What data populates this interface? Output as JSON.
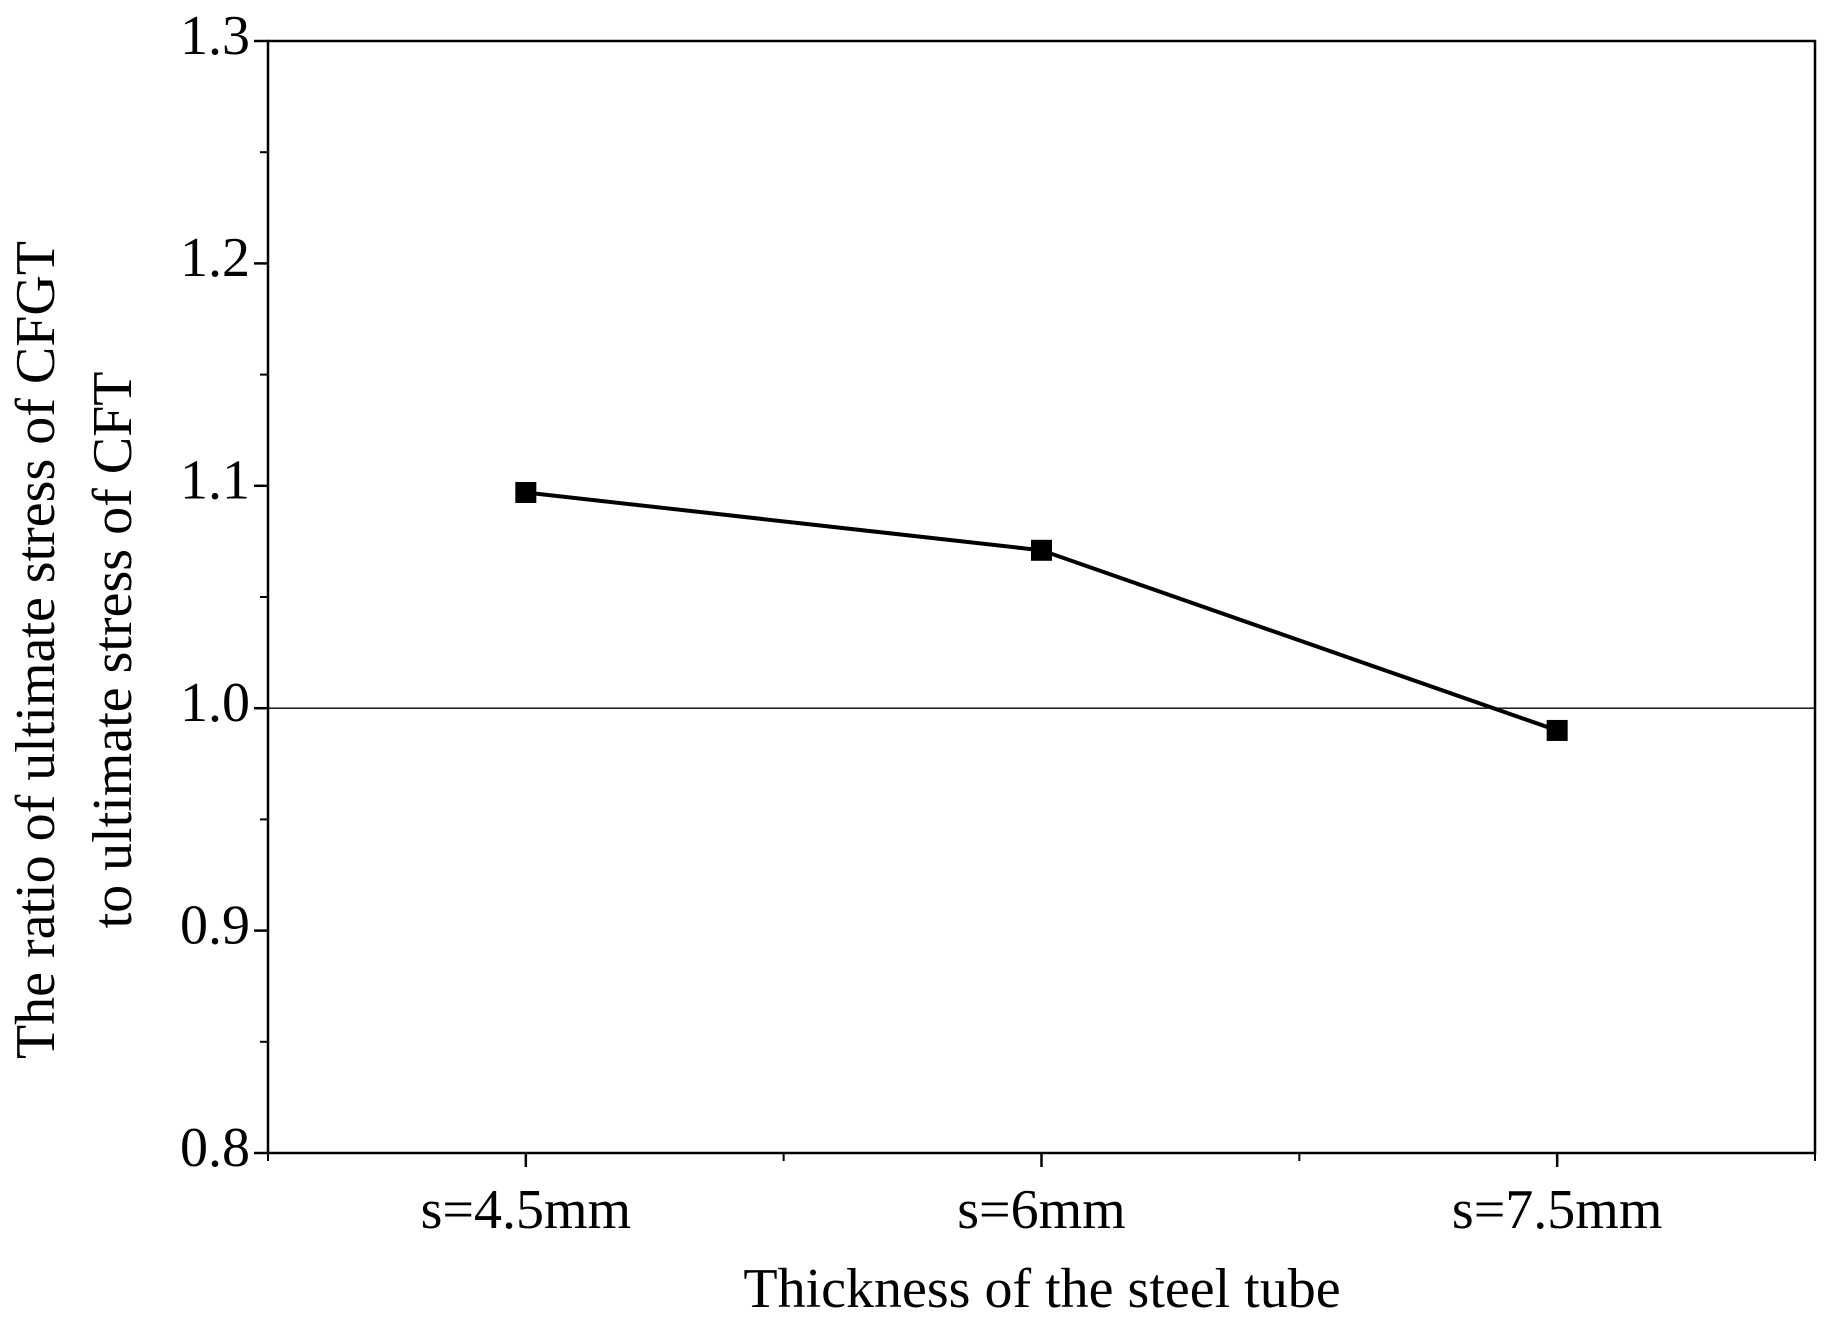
{
  "chart_data": {
    "type": "line",
    "x_label": "Thickness of the steel tube",
    "y_label": [
      "The ratio of ultimate stress of CFGT",
      "to ultimate stress of CFT"
    ],
    "categories": [
      "s=4.5mm",
      "s=6mm",
      "s=7.5mm"
    ],
    "series": [
      {
        "color": "#000000",
        "marker": "square",
        "values": [
          1.097,
          1.071,
          0.99
        ]
      }
    ],
    "ylim": [
      0.8,
      1.3
    ],
    "yticks": [
      {
        "value": 0.8,
        "label": "0.8"
      },
      {
        "value": 0.9,
        "label": "0.9"
      },
      {
        "value": 1.0,
        "label": "1.0"
      },
      {
        "value": 1.1,
        "label": "1.1"
      },
      {
        "value": 1.2,
        "label": "1.2"
      },
      {
        "value": 1.3,
        "label": "1.3"
      }
    ],
    "reference_line": 1.0,
    "grid": false
  }
}
